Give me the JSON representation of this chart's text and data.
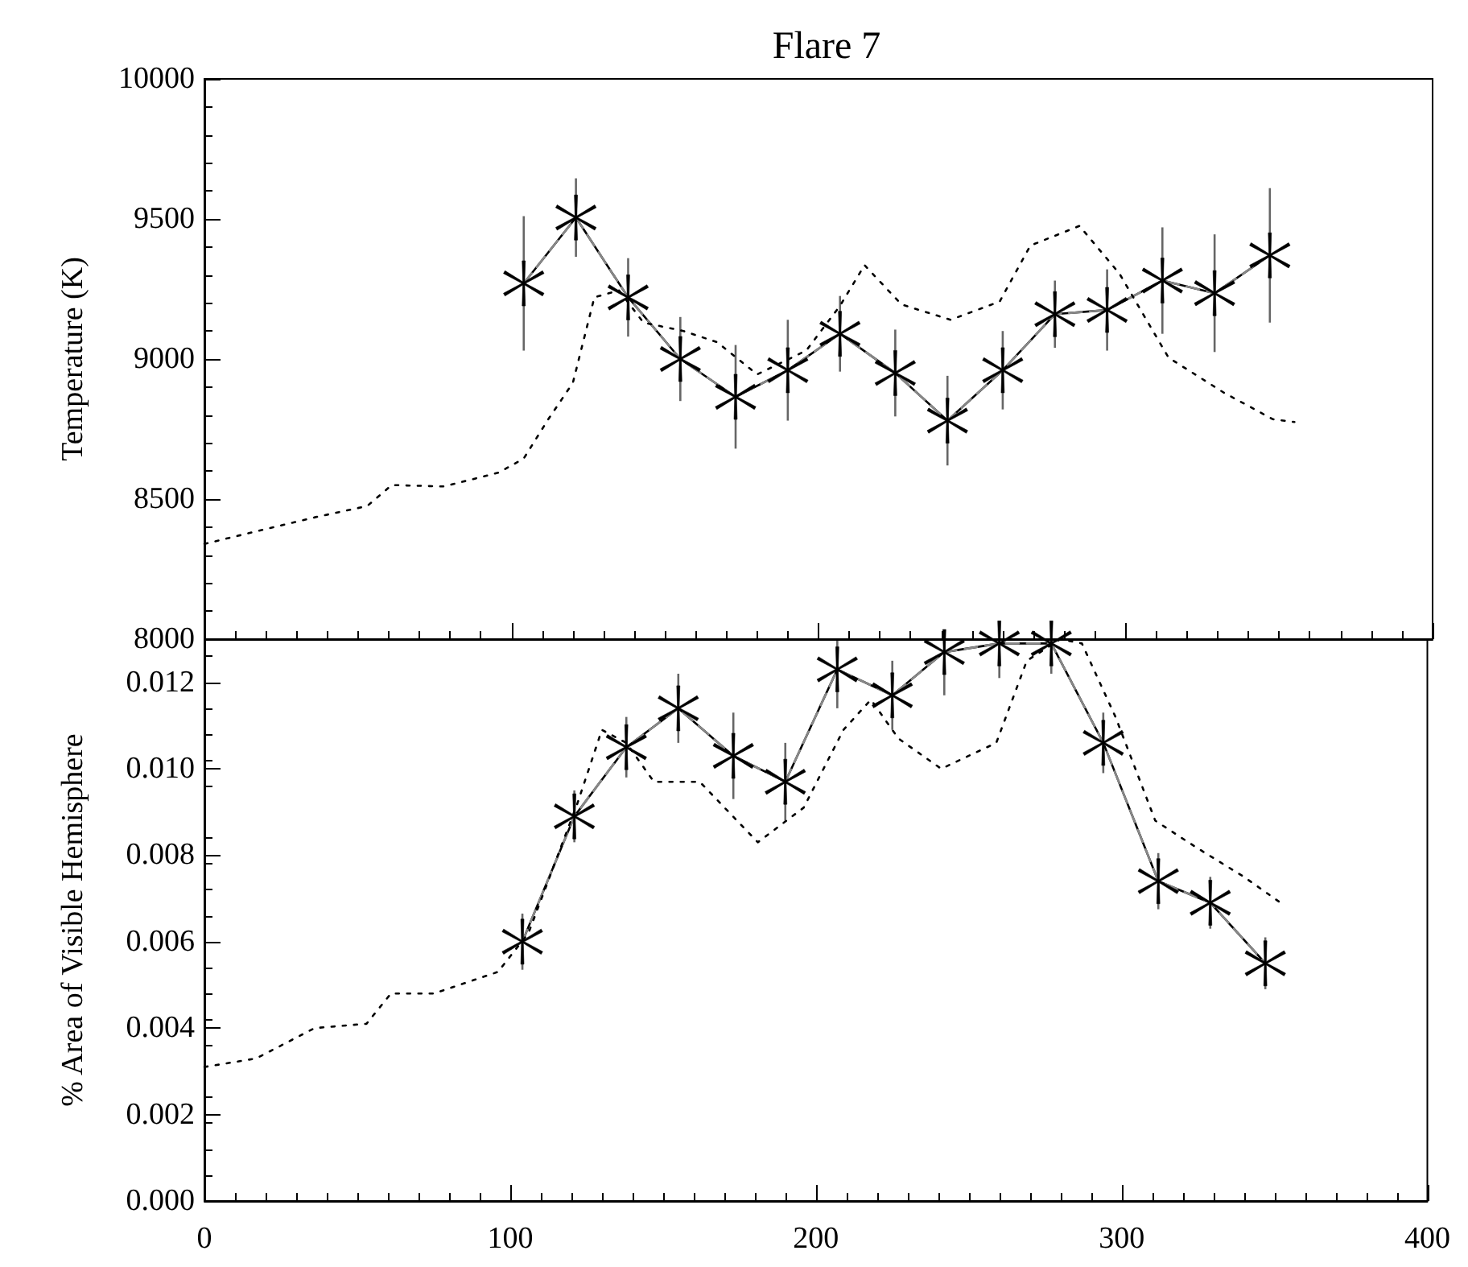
{
  "chart_data": [
    {
      "type": "line",
      "title": "Flare 7",
      "ylabel": "Temperature (K)",
      "xlim": [
        0,
        400
      ],
      "xticks": [
        0,
        100,
        200,
        300,
        400
      ],
      "ylim": [
        8000,
        10000
      ],
      "yticks": [
        8000,
        8500,
        9000,
        9500,
        10000
      ],
      "tick_labels": "y",
      "grid": false,
      "series": [
        {
          "color": "#000000",
          "marker": "cross",
          "line_style": "solid",
          "x": [
            104,
            121,
            138,
            155,
            173,
            190,
            207,
            225,
            242,
            260,
            277,
            294,
            312,
            329,
            347
          ],
          "values": [
            9270,
            9505,
            9220,
            9000,
            8865,
            8960,
            9090,
            8950,
            8780,
            8960,
            9160,
            9175,
            9280,
            9235,
            9370
          ],
          "errors": [
            240,
            140,
            140,
            150,
            185,
            180,
            135,
            155,
            160,
            140,
            120,
            145,
            190,
            210,
            240
          ]
        },
        {
          "color": "#888888",
          "marker": "none",
          "line_style": "dashed",
          "x": [
            104,
            121,
            138,
            155,
            173,
            190,
            207,
            225,
            242,
            260,
            277,
            294,
            312,
            329,
            347
          ],
          "values": [
            9270,
            9505,
            9220,
            9000,
            8865,
            8960,
            9090,
            8950,
            8780,
            8960,
            9160,
            9175,
            9280,
            9235,
            9370
          ]
        },
        {
          "color": "#000000",
          "marker": "none",
          "line_style": "dotted",
          "x": [
            0,
            17,
            36,
            53,
            61,
            78,
            96,
            104,
            112,
            120,
            127,
            135,
            143,
            156,
            167,
            180,
            196,
            207,
            215,
            227,
            243,
            259,
            269,
            285,
            298,
            314,
            332,
            348,
            355
          ],
          "values": [
            8340,
            8385,
            8435,
            8475,
            8550,
            8545,
            8595,
            8645,
            8785,
            8915,
            9220,
            9245,
            9130,
            9100,
            9060,
            8945,
            9030,
            9190,
            9335,
            9195,
            9140,
            9205,
            9405,
            9475,
            9305,
            9005,
            8880,
            8785,
            8775
          ]
        }
      ]
    },
    {
      "type": "line",
      "ylabel": "% Area of Visible Hemisphere",
      "xlim": [
        0,
        400
      ],
      "xticks": [
        0,
        100,
        200,
        300,
        400
      ],
      "ylim": [
        0,
        0.013
      ],
      "yticks": [
        {
          "value": 0,
          "label": "0.000"
        },
        {
          "value": 0.002,
          "label": "0.002"
        },
        {
          "value": 0.004,
          "label": "0.004"
        },
        {
          "value": 0.006,
          "label": "0.006"
        },
        {
          "value": 0.008,
          "label": "0.008"
        },
        {
          "value": 0.01,
          "label": "0.010"
        },
        {
          "value": 0.012,
          "label": "0.012"
        }
      ],
      "grid": false,
      "series": [
        {
          "color": "#000000",
          "marker": "cross",
          "line_style": "solid",
          "x": [
            104,
            121,
            138,
            155,
            173,
            190,
            207,
            225,
            242,
            260,
            277,
            294,
            312,
            329,
            347
          ],
          "values": [
            0.006,
            0.0089,
            0.0105,
            0.0114,
            0.0103,
            0.0097,
            0.0123,
            0.0117,
            0.0127,
            0.0129,
            0.0129,
            0.0106,
            0.0074,
            0.0069,
            0.0055
          ],
          "errors": [
            0.00065,
            0.0006,
            0.0007,
            0.0008,
            0.001,
            0.0009,
            [
              0.0114,
              0.013
            ],
            0.0008,
            [
              0.0117,
              0.013
            ],
            [
              0.0121,
              0.013
            ],
            [
              0.0122,
              0.013
            ],
            0.0007,
            0.00065,
            0.0006,
            0.0006
          ]
        },
        {
          "color": "#888888",
          "marker": "none",
          "line_style": "dashed",
          "x": [
            104,
            121,
            138,
            155,
            173,
            190,
            207,
            225,
            242,
            260,
            277,
            294,
            312,
            329,
            347
          ],
          "values": [
            0.006,
            0.0089,
            0.0105,
            0.0114,
            0.0103,
            0.0097,
            0.0123,
            0.0117,
            0.0127,
            0.0129,
            0.0129,
            0.0106,
            0.0074,
            0.0069,
            0.0055
          ]
        },
        {
          "color": "#000000",
          "marker": "none",
          "line_style": "dotted",
          "x": [
            0,
            17,
            36,
            53,
            61,
            75,
            96,
            106,
            114,
            122,
            130,
            138,
            147,
            162,
            181,
            196,
            209,
            218,
            227,
            241,
            259,
            269,
            280,
            287,
            298,
            311,
            324,
            340,
            352
          ],
          "values": [
            0.0031,
            0.0033,
            0.004,
            0.0041,
            0.0048,
            0.0048,
            0.0053,
            0.0062,
            0.0077,
            0.0092,
            0.0109,
            0.0106,
            0.0097,
            0.0097,
            0.0083,
            0.0091,
            0.0109,
            0.0116,
            0.0107,
            0.01,
            0.0106,
            0.0125,
            0.013,
            0.0129,
            0.0112,
            0.0088,
            0.0082,
            0.0075,
            0.0069
          ]
        }
      ]
    }
  ]
}
